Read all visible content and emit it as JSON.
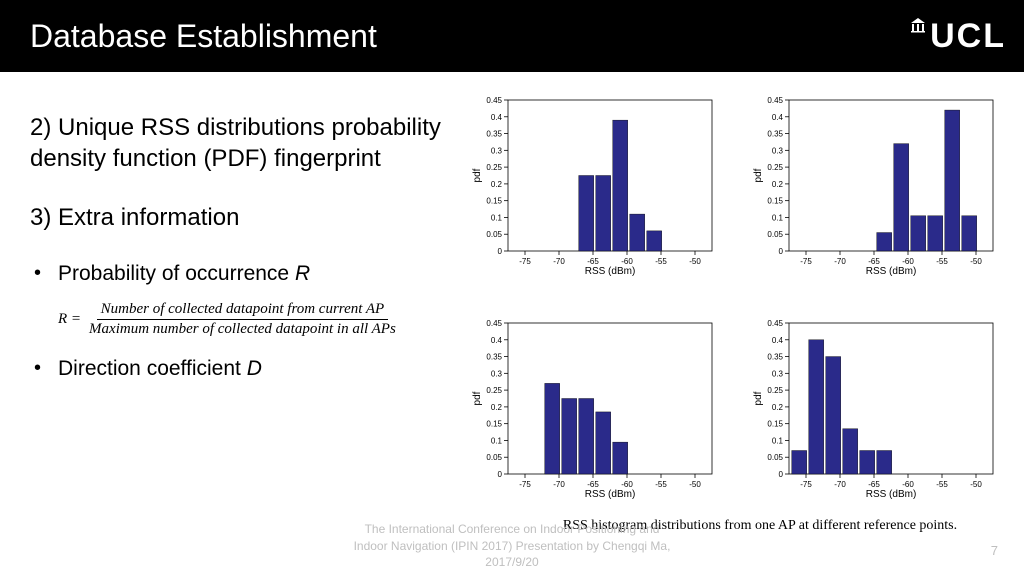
{
  "header": {
    "title": "Database Establishment",
    "logo_text": "UCL"
  },
  "left": {
    "point2_label": "2)  Unique RSS distributions probability density function (PDF) fingerprint",
    "point3_label": "3)  Extra information",
    "bullet1_prefix": "Probability of occurrence ",
    "bullet1_var": "R",
    "formula": {
      "lhs": "R =",
      "numerator": "Number of  collected datapoint from current AP",
      "denominator": "Maximum number of collected datapoint in all APs"
    },
    "bullet2_prefix": "Direction coefficient ",
    "bullet2_var": "D"
  },
  "charts": {
    "ylabel": "pdf",
    "xlabel": "RSS (dBm)",
    "ylim": [
      0,
      0.45
    ],
    "yticks": [
      0,
      0.05,
      0.1,
      0.15,
      0.2,
      0.25,
      0.3,
      0.35,
      0.4,
      0.45
    ],
    "xlim": [
      -77.5,
      -47.5
    ],
    "xticks": [
      -75,
      -70,
      -65,
      -60,
      -55,
      -50
    ],
    "bar_color": "#2a2a8a",
    "background_color": "#ffffff",
    "axis_color": "#000000",
    "tick_fontsize": 8,
    "label_fontsize": 10,
    "bar_width": 2.2,
    "panels": [
      {
        "x": [
          -66,
          -63.5,
          -61,
          -58.5,
          -56
        ],
        "y": [
          0.225,
          0.225,
          0.39,
          0.11,
          0.06
        ]
      },
      {
        "x": [
          -63.5,
          -61,
          -58.5,
          -56,
          -53.5,
          -51
        ],
        "y": [
          0.055,
          0.32,
          0.105,
          0.105,
          0.42,
          0.105
        ]
      },
      {
        "x": [
          -71,
          -68.5,
          -66,
          -63.5,
          -61
        ],
        "y": [
          0.27,
          0.225,
          0.225,
          0.185,
          0.095
        ]
      },
      {
        "x": [
          -76,
          -73.5,
          -71,
          -68.5,
          -66,
          -63.5
        ],
        "y": [
          0.07,
          0.4,
          0.35,
          0.135,
          0.07,
          0.07
        ]
      }
    ]
  },
  "caption": "RSS histogram distributions from one AP at different reference points.",
  "footer": {
    "line1": "The International Conference on Indoor Positioning and",
    "line2": "Indoor Navigation (IPIN 2017) Presentation by Chengqi Ma,",
    "line3": "2017/9/20"
  },
  "page_number": "7"
}
